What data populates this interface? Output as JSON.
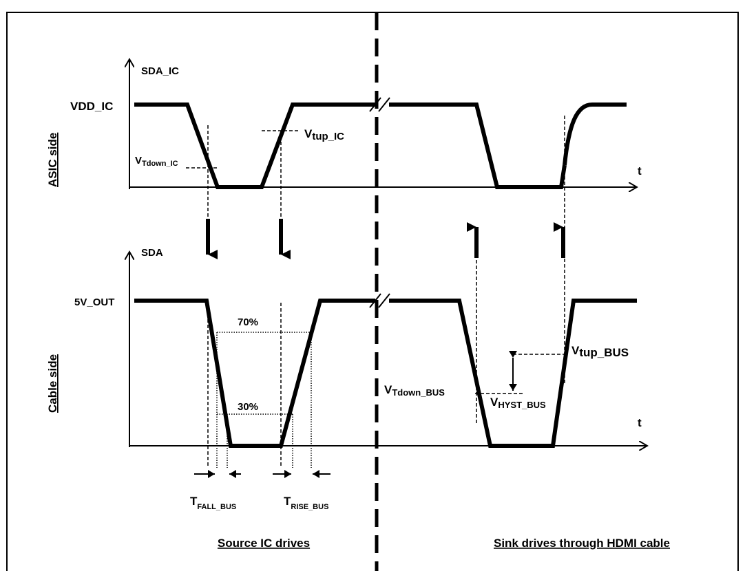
{
  "top": {
    "signal": "SDA_IC",
    "side": "ASIC side",
    "high": {
      "main": "V",
      "sub": "DD_IC"
    },
    "tup": {
      "main": "V",
      "sub": "tup_IC"
    },
    "tdown": {
      "main": "V",
      "sub": "Tdown_IC"
    },
    "axis": "t"
  },
  "bottom": {
    "signal": "SDA",
    "side": "Cable side",
    "high": "5V_OUT",
    "p70": "70%",
    "p30": "30%",
    "tup": {
      "main": "V",
      "sub": "tup_BUS"
    },
    "tdown": {
      "main": "V",
      "sub": "Tdown_BUS"
    },
    "hyst": {
      "main": "V",
      "sub": "HYST_BUS"
    },
    "axis": "t",
    "fall": {
      "main": "T",
      "sub": "FALL_BUS"
    },
    "rise": {
      "main": "T",
      "sub": "RISE_BUS"
    }
  },
  "footer": {
    "left": "Source IC drives",
    "right": "Sink drives through HDMI cable"
  }
}
